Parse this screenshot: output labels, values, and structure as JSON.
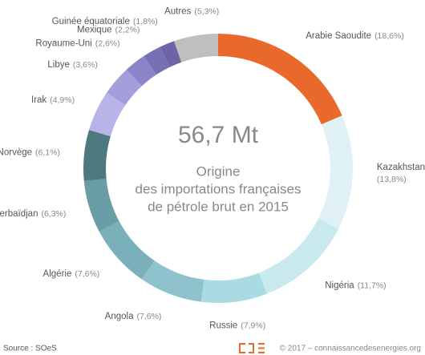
{
  "chart_data": {
    "type": "donut",
    "total_label": "56,7 Mt",
    "title_lines": [
      "Origine",
      "des importations françaises",
      "de pétrole brut en 2015"
    ],
    "categories": [
      "Arabie Saoudite",
      "Kazakhstan",
      "Nigéria",
      "Russie",
      "Angola",
      "Algérie",
      "Azerbaïdjan",
      "Norvège",
      "Irak",
      "Libye",
      "Royaume-Uni",
      "Mexique",
      "Guinée équatoriale",
      "Autres"
    ],
    "values": [
      18.6,
      13.8,
      11.7,
      7.9,
      7.6,
      7.6,
      6.3,
      6.1,
      4.9,
      3.6,
      2.6,
      2.2,
      1.8,
      5.3
    ],
    "value_labels": [
      "(18,6%)",
      "(13,8%)",
      "(11,7%)",
      "(7,9%)",
      "(7,6%)",
      "(7,6%)",
      "(6,3%)",
      "(6,1%)",
      "(4,9%)",
      "(3,6%)",
      "(2,6%)",
      "(2,2%)",
      "(1,8%)",
      "(5,3%)"
    ],
    "colors": [
      "#e8692b",
      "#dff1f5",
      "#c8e9ee",
      "#a9dbe3",
      "#8ec3ce",
      "#7ab0ba",
      "#6a9ea6",
      "#4e7a7f",
      "#b8b4ea",
      "#a49fdc",
      "#8a84c9",
      "#7870b5",
      "#6c64a6",
      "#bfbfbf"
    ],
    "source": "Source : SOeS",
    "credit": "© 2017 – connaissancedesenergies.org"
  }
}
